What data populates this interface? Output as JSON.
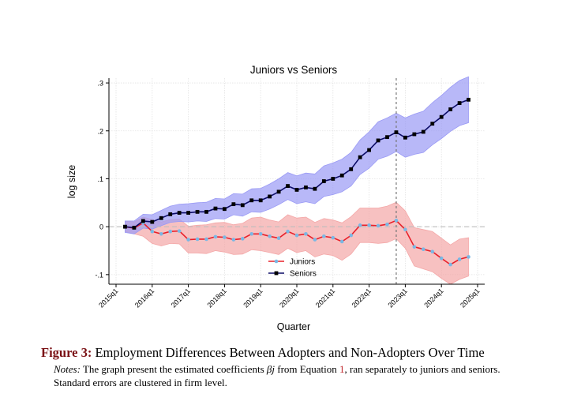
{
  "chart_data": {
    "type": "line",
    "title": "Juniors vs Seniors",
    "xlabel": "Quarter",
    "ylabel": "log size",
    "ylim": [
      -0.12,
      0.31
    ],
    "yticks": [
      -0.1,
      0,
      0.1,
      0.2,
      0.3
    ],
    "ytick_labels": [
      "-.1",
      "0",
      ".1",
      ".2",
      ".3"
    ],
    "xtick_labels": [
      "2015q1",
      "2016q1",
      "2017q1",
      "2018q1",
      "2019q1",
      "2020q1",
      "2021q1",
      "2022q1",
      "2023q1",
      "2024q1",
      "2025q1"
    ],
    "x_periods": [
      "2015q1",
      "2015q2",
      "2015q3",
      "2015q4",
      "2016q1",
      "2016q2",
      "2016q3",
      "2016q4",
      "2017q1",
      "2017q2",
      "2017q3",
      "2017q4",
      "2018q1",
      "2018q2",
      "2018q3",
      "2018q4",
      "2019q1",
      "2019q2",
      "2019q3",
      "2019q4",
      "2020q1",
      "2020q2",
      "2020q3",
      "2020q4",
      "2021q1",
      "2021q2",
      "2021q3",
      "2021q4",
      "2022q1",
      "2022q2",
      "2022q3",
      "2022q4",
      "2023q1",
      "2023q2",
      "2023q3",
      "2023q4",
      "2024q1",
      "2024q2",
      "2024q3",
      "2024q4",
      "2025q1"
    ],
    "grid": true,
    "legend_position": "bottom-center",
    "reference_lines": {
      "horizontal_y": 0,
      "vertical_x": "2022q4"
    },
    "series": [
      {
        "name": "Juniors",
        "line_color": "#e8202a",
        "marker_color": "#7ab8e4",
        "band_color": "#f4a7a7",
        "x": [
          "2015q2",
          "2015q3",
          "2015q4",
          "2016q1",
          "2016q2",
          "2016q3",
          "2016q4",
          "2017q1",
          "2017q2",
          "2017q3",
          "2017q4",
          "2018q1",
          "2018q2",
          "2018q3",
          "2018q4",
          "2019q1",
          "2019q2",
          "2019q3",
          "2019q4",
          "2020q1",
          "2020q2",
          "2020q3",
          "2020q4",
          "2021q1",
          "2021q2",
          "2021q3",
          "2021q4",
          "2022q1",
          "2022q2",
          "2022q3",
          "2022q4",
          "2023q1",
          "2023q2",
          "2023q3",
          "2023q4",
          "2024q1",
          "2024q2",
          "2024q3",
          "2024q4"
        ],
        "values": [
          0,
          -0.003,
          0.008,
          -0.01,
          -0.015,
          -0.01,
          -0.009,
          -0.027,
          -0.026,
          -0.026,
          -0.021,
          -0.022,
          -0.027,
          -0.025,
          -0.015,
          -0.015,
          -0.02,
          -0.024,
          -0.01,
          -0.018,
          -0.015,
          -0.027,
          -0.02,
          -0.023,
          -0.031,
          -0.018,
          0.003,
          0.003,
          0.002,
          0.005,
          0.013,
          -0.006,
          -0.042,
          -0.047,
          -0.052,
          -0.066,
          -0.079,
          -0.068,
          -0.063
        ],
        "lower": [
          -0.01,
          -0.015,
          -0.02,
          -0.035,
          -0.04,
          -0.035,
          -0.036,
          -0.055,
          -0.055,
          -0.056,
          -0.05,
          -0.053,
          -0.058,
          -0.057,
          -0.048,
          -0.05,
          -0.054,
          -0.058,
          -0.045,
          -0.054,
          -0.05,
          -0.063,
          -0.057,
          -0.06,
          -0.07,
          -0.057,
          -0.033,
          -0.033,
          -0.035,
          -0.033,
          -0.025,
          -0.045,
          -0.082,
          -0.088,
          -0.094,
          -0.108,
          -0.12,
          -0.11,
          -0.103
        ],
        "upper": [
          0.012,
          0.01,
          0.02,
          0.015,
          0.01,
          0.015,
          0.016,
          0.001,
          0.003,
          0.004,
          0.008,
          0.009,
          0.004,
          0.007,
          0.018,
          0.02,
          0.014,
          0.01,
          0.025,
          0.018,
          0.02,
          0.009,
          0.017,
          0.014,
          0.008,
          0.021,
          0.039,
          0.039,
          0.039,
          0.043,
          0.051,
          0.033,
          -0.002,
          -0.006,
          -0.01,
          -0.024,
          -0.038,
          -0.026,
          -0.023
        ]
      },
      {
        "name": "Seniors",
        "line_color": "#0b0b66",
        "marker_color": "#000000",
        "band_color": "#9a9af5",
        "x": [
          "2015q2",
          "2015q3",
          "2015q4",
          "2016q1",
          "2016q2",
          "2016q3",
          "2016q4",
          "2017q1",
          "2017q2",
          "2017q3",
          "2017q4",
          "2018q1",
          "2018q2",
          "2018q3",
          "2018q4",
          "2019q1",
          "2019q2",
          "2019q3",
          "2019q4",
          "2020q1",
          "2020q2",
          "2020q3",
          "2020q4",
          "2021q1",
          "2021q2",
          "2021q3",
          "2021q4",
          "2022q1",
          "2022q2",
          "2022q3",
          "2022q4",
          "2023q1",
          "2023q2",
          "2023q3",
          "2023q4",
          "2024q1",
          "2024q2",
          "2024q3",
          "2024q4"
        ],
        "values": [
          0,
          -0.002,
          0.012,
          0.01,
          0.018,
          0.026,
          0.029,
          0.029,
          0.031,
          0.031,
          0.038,
          0.037,
          0.047,
          0.045,
          0.055,
          0.055,
          0.063,
          0.073,
          0.085,
          0.077,
          0.082,
          0.079,
          0.095,
          0.1,
          0.107,
          0.12,
          0.145,
          0.16,
          0.18,
          0.187,
          0.197,
          0.186,
          0.193,
          0.198,
          0.215,
          0.229,
          0.245,
          0.258,
          0.265
        ],
        "lower": [
          -0.012,
          -0.015,
          -0.003,
          -0.005,
          0.002,
          0.009,
          0.011,
          0.01,
          0.012,
          0.011,
          0.017,
          0.016,
          0.025,
          0.022,
          0.031,
          0.03,
          0.037,
          0.046,
          0.057,
          0.048,
          0.052,
          0.048,
          0.063,
          0.067,
          0.073,
          0.085,
          0.109,
          0.122,
          0.141,
          0.147,
          0.157,
          0.145,
          0.151,
          0.155,
          0.171,
          0.184,
          0.199,
          0.211,
          0.217
        ],
        "upper": [
          0.012,
          0.012,
          0.026,
          0.025,
          0.034,
          0.043,
          0.047,
          0.048,
          0.05,
          0.051,
          0.059,
          0.058,
          0.069,
          0.068,
          0.079,
          0.08,
          0.089,
          0.1,
          0.113,
          0.106,
          0.112,
          0.11,
          0.127,
          0.133,
          0.141,
          0.155,
          0.181,
          0.198,
          0.219,
          0.227,
          0.237,
          0.227,
          0.235,
          0.241,
          0.259,
          0.274,
          0.291,
          0.305,
          0.313
        ]
      }
    ]
  },
  "caption": {
    "figure_label": "Figure 3:",
    "figure_title": "Employment Differences Between Adopters and Non-Adopters Over Time",
    "notes_label": "Notes:",
    "notes_text_1": "The graph present the estimated coefficients",
    "beta_symbol": "βj",
    "notes_text_2": "from Equation",
    "equation_ref": "1",
    "notes_text_3": ", ran separately to juniors and seniors. Standard errors are clustered in firm level."
  }
}
